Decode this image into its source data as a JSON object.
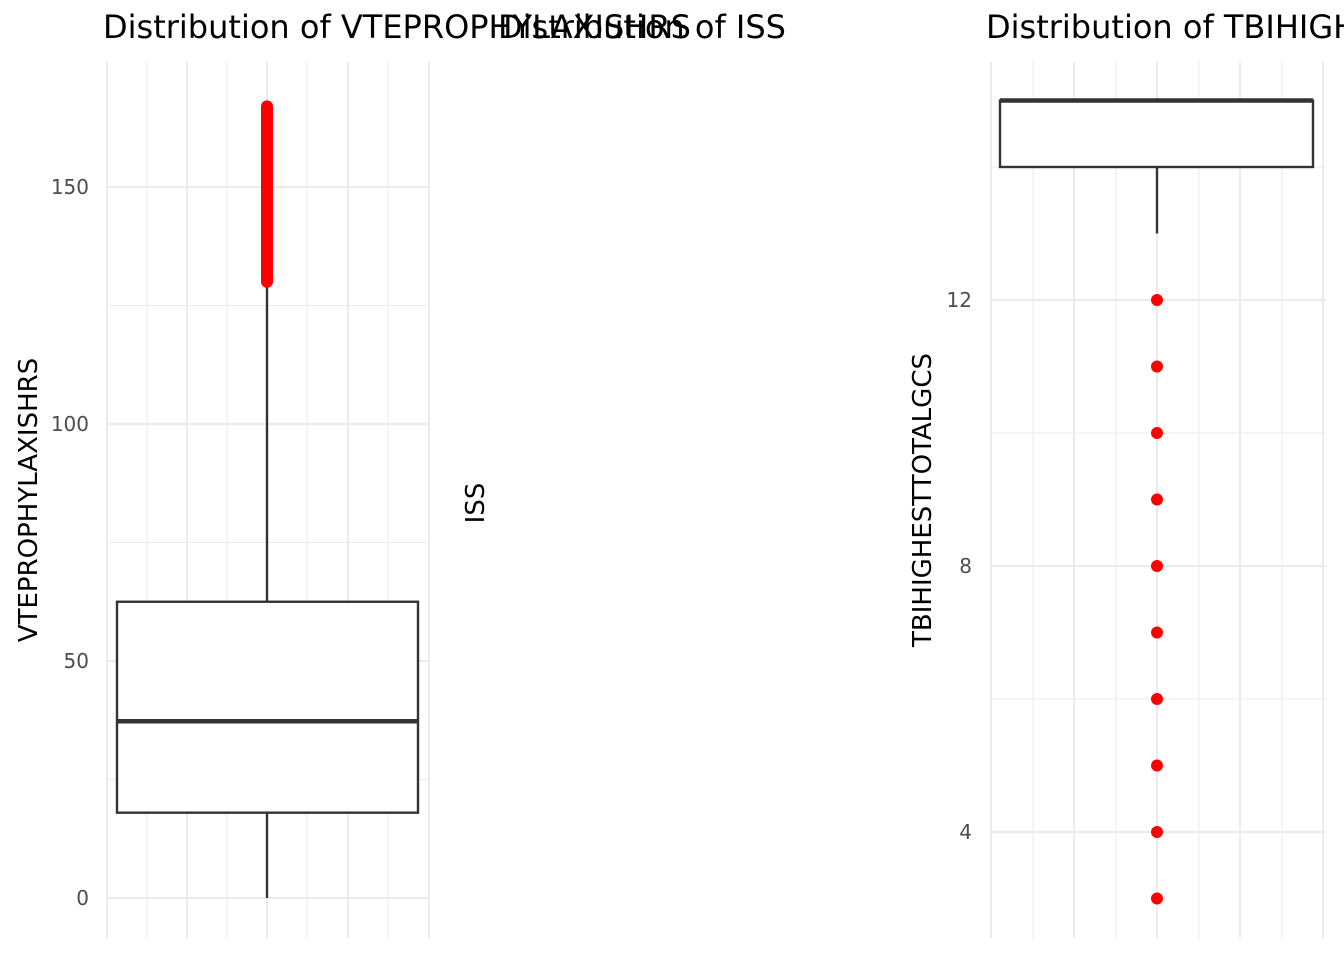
{
  "chart_data": [
    {
      "type": "boxplot",
      "title": "Distribution of VTEPROPHYLAXISHRS",
      "xlabel": "",
      "ylabel": "VTEPROPHYLAXISHRS",
      "ylim": [
        0,
        168
      ],
      "yticks": [
        0,
        50,
        100,
        150
      ],
      "y_minor": [
        25,
        75,
        125
      ],
      "box": {
        "whisker_low": 0,
        "q1": 18,
        "median": 37.3,
        "q3": 62.5,
        "whisker_high": 129.7
      },
      "outlier_range": [
        130,
        167
      ],
      "outlier_color": "#ff0000",
      "grid": true
    },
    {
      "type": "boxplot",
      "title": "Distribution of ISS",
      "xlabel": "",
      "ylabel": "ISS",
      "grid": false
    },
    {
      "type": "boxplot",
      "title": "Distribution of TBIHIGHESTTOTALGCS",
      "xlabel": "",
      "ylabel": "TBIHIGHESTTOTALGCS",
      "ylim": [
        2.5,
        15.5
      ],
      "yticks": [
        4,
        8,
        12
      ],
      "y_minor": [
        6,
        10,
        14
      ],
      "box": {
        "whisker_low": 13,
        "q1": 14,
        "median": 15,
        "q3": 15,
        "whisker_high": 15
      },
      "outliers": [
        3,
        4,
        5,
        6,
        7,
        8,
        9,
        10,
        11,
        12
      ],
      "outlier_color": "#ff0000",
      "grid": true
    }
  ]
}
